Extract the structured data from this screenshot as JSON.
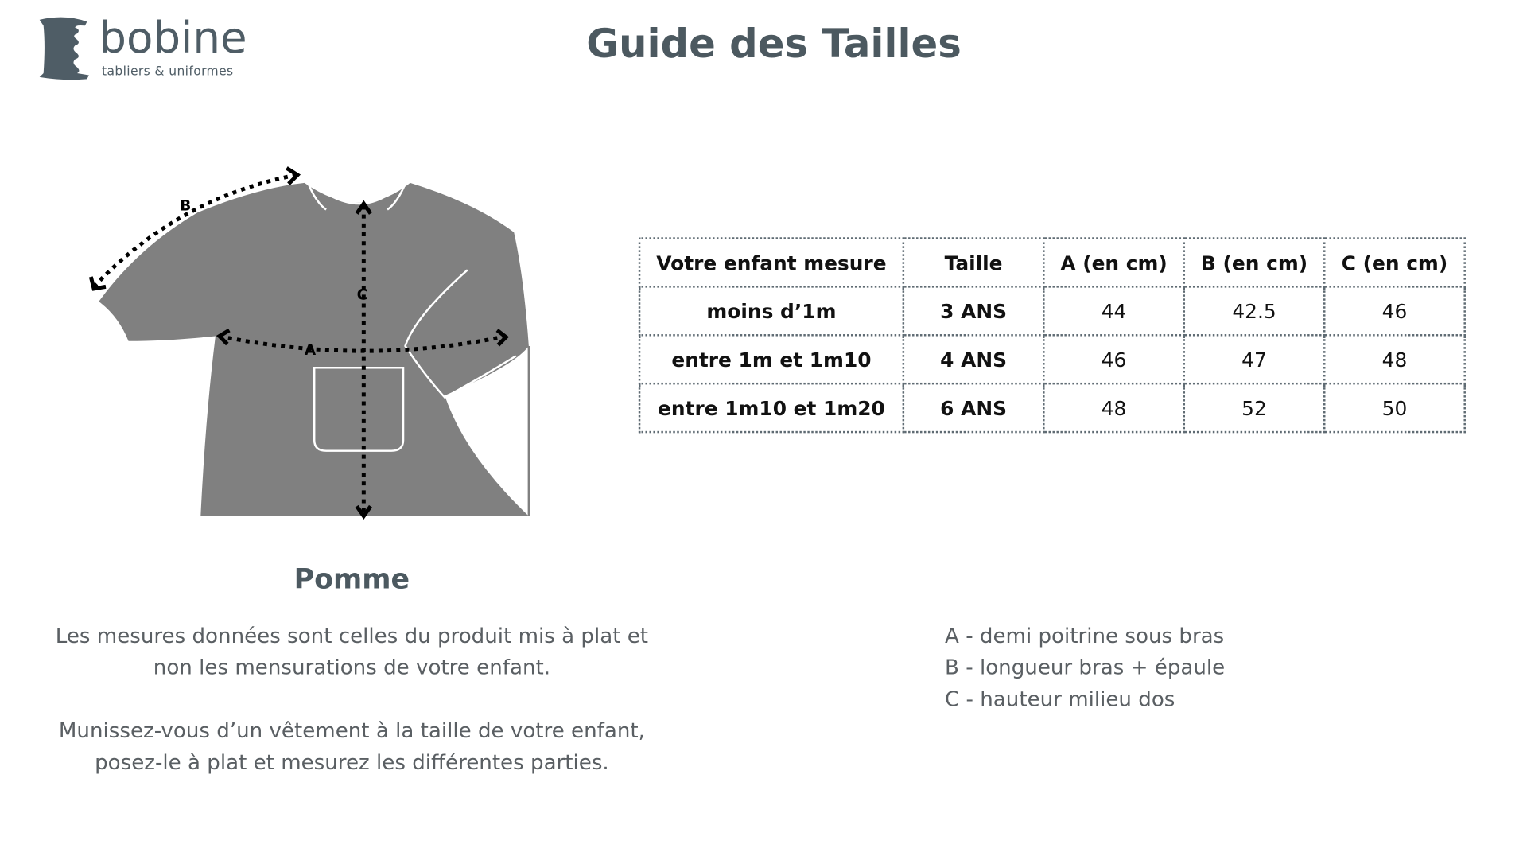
{
  "header": {
    "brand": "bobine",
    "tagline": "tabliers & uniformes",
    "title": "Guide des Tailles",
    "logo_icon": "spool-icon"
  },
  "product": {
    "name": "Pomme",
    "diagram_labels": {
      "a": "A",
      "b": "B",
      "c": "C"
    }
  },
  "table": {
    "headers": [
      "Votre enfant mesure",
      "Taille",
      "A (en cm)",
      "B (en cm)",
      "C (en cm)"
    ],
    "rows": [
      [
        "moins d’1m",
        "3 ANS",
        "44",
        "42.5",
        "46"
      ],
      [
        "entre 1m et 1m10",
        "4 ANS",
        "46",
        "47",
        "48"
      ],
      [
        "entre 1m10 et 1m20",
        "6 ANS",
        "48",
        "52",
        "50"
      ]
    ]
  },
  "notes": {
    "p1": [
      "Les mesures données sont celles du produit mis à plat et",
      "non les mensurations de votre enfant."
    ],
    "p2": [
      "Munissez-vous d’un vêtement à la taille de votre enfant,",
      "posez-le à plat et mesurez les différentes parties."
    ]
  },
  "legend": [
    "A - demi poitrine sous bras",
    "B - longueur bras + épaule",
    "C - hauteur milieu dos"
  ],
  "colors": {
    "text": "#4c5960",
    "garment": "#808080"
  }
}
